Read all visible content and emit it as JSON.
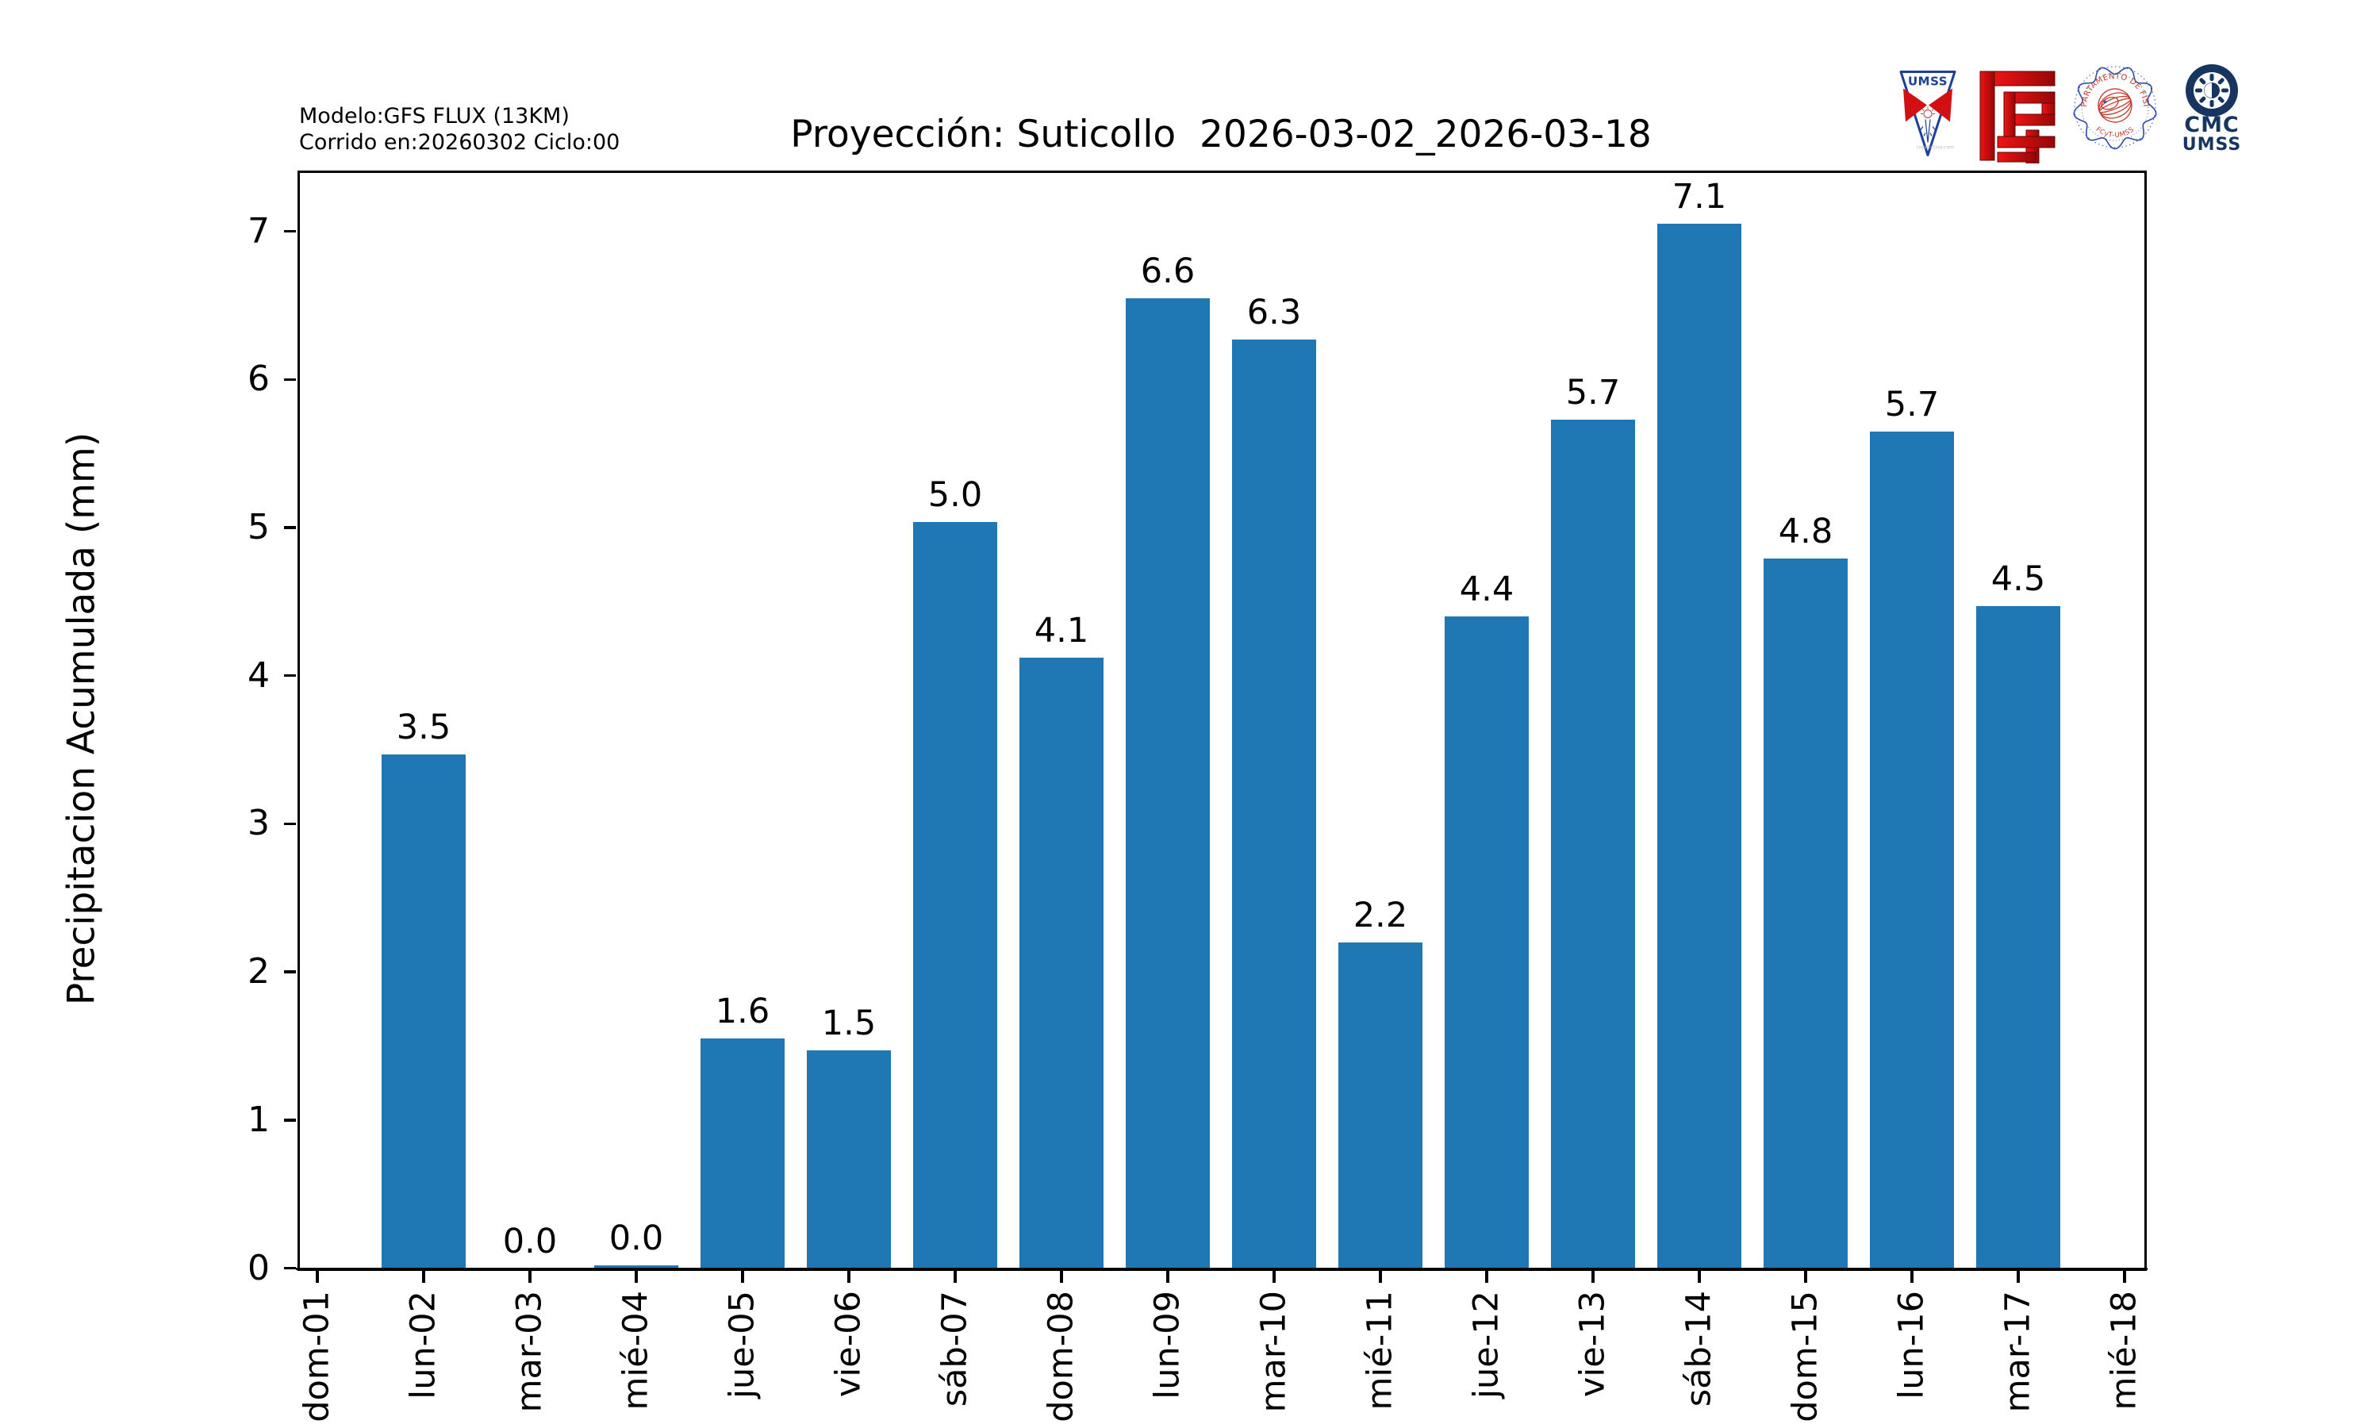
{
  "header": {
    "model_line1": "Modelo:GFS FLUX (13KM)",
    "model_line2": "Corrido en:20260302 Ciclo:00",
    "title": "Proyección: Suticollo  2026-03-02_2026-03-18"
  },
  "logos": {
    "umss_pennant": {
      "label": "UMSS",
      "watermark": "creadictivo.com"
    },
    "fisica_seal": {
      "text_top": "DEPARTAMENTO DE FÍSICA",
      "text_bottom": "FCyT-UMSS"
    },
    "cmc": {
      "line1": "CMC",
      "line2": "UMSS"
    }
  },
  "colors": {
    "bar": "#1f77b4",
    "logo_red": "#d21013",
    "logo_navy": "#16365f",
    "seal_blue": "#2b4ea8",
    "seal_red": "#c4392b",
    "pennant_blue": "#1e3f94"
  },
  "chart_data": {
    "type": "bar",
    "title": "Proyección: Suticollo  2026-03-02_2026-03-18",
    "xlabel": "",
    "ylabel": "Precipitacion Acumulada (mm)",
    "ylim": [
      0,
      7.4
    ],
    "yticks": [
      0,
      1,
      2,
      3,
      4,
      5,
      6,
      7
    ],
    "grid": false,
    "legend": null,
    "bar_color": "#1f77b4",
    "categories": [
      "dom-01",
      "lun-02",
      "mar-03",
      "mié-04",
      "jue-05",
      "vie-06",
      "sáb-07",
      "dom-08",
      "lun-09",
      "mar-10",
      "mié-11",
      "jue-12",
      "vie-13",
      "sáb-14",
      "dom-15",
      "lun-16",
      "mar-17",
      "mié-18"
    ],
    "values": [
      null,
      3.5,
      0.0,
      0.0,
      1.6,
      1.5,
      5.0,
      4.1,
      6.6,
      6.3,
      2.2,
      4.4,
      5.7,
      7.1,
      4.8,
      5.7,
      4.5,
      null
    ],
    "value_labels": [
      null,
      "3.5",
      "0.0",
      "0.0",
      "1.6",
      "1.5",
      "5.0",
      "4.1",
      "6.6",
      "6.3",
      "2.2",
      "4.4",
      "5.7",
      "7.1",
      "4.8",
      "5.7",
      "4.5",
      null
    ],
    "bar_heights": [
      null,
      3.47,
      0.0,
      0.02,
      1.55,
      1.47,
      5.04,
      4.12,
      6.55,
      6.27,
      2.2,
      4.4,
      5.73,
      7.05,
      4.79,
      5.65,
      4.47,
      null
    ]
  }
}
